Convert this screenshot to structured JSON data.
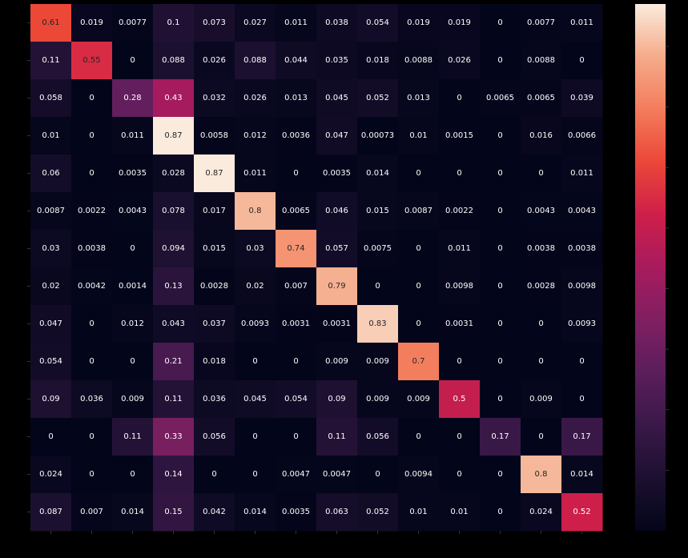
{
  "chart_data": {
    "type": "heatmap",
    "title": "",
    "xlabel": "",
    "ylabel": "",
    "x_tick_labels": [],
    "y_tick_labels": [],
    "colormap": "rocket",
    "vmin": 0,
    "vmax": 0.87,
    "colorbar": true,
    "values": [
      [
        "0.61",
        "0.019",
        "0.0077",
        "0.1",
        "0.073",
        "0.027",
        "0.011",
        "0.038",
        "0.054",
        "0.019",
        "0.019",
        "0",
        "0.0077",
        "0.011"
      ],
      [
        "0.11",
        "0.55",
        "0",
        "0.088",
        "0.026",
        "0.088",
        "0.044",
        "0.035",
        "0.018",
        "0.0088",
        "0.026",
        "0",
        "0.0088",
        "0"
      ],
      [
        "0.058",
        "0",
        "0.28",
        "0.43",
        "0.032",
        "0.026",
        "0.013",
        "0.045",
        "0.052",
        "0.013",
        "0",
        "0.0065",
        "0.0065",
        "0.039"
      ],
      [
        "0.01",
        "0",
        "0.011",
        "0.87",
        "0.0058",
        "0.012",
        "0.0036",
        "0.047",
        "0.00073",
        "0.01",
        "0.0015",
        "0",
        "0.016",
        "0.0066"
      ],
      [
        "0.06",
        "0",
        "0.0035",
        "0.028",
        "0.87",
        "0.011",
        "0",
        "0.0035",
        "0.014",
        "0",
        "0",
        "0",
        "0",
        "0.011"
      ],
      [
        "0.0087",
        "0.0022",
        "0.0043",
        "0.078",
        "0.017",
        "0.8",
        "0.0065",
        "0.046",
        "0.015",
        "0.0087",
        "0.0022",
        "0",
        "0.0043",
        "0.0043"
      ],
      [
        "0.03",
        "0.0038",
        "0",
        "0.094",
        "0.015",
        "0.03",
        "0.74",
        "0.057",
        "0.0075",
        "0",
        "0.011",
        "0",
        "0.0038",
        "0.0038"
      ],
      [
        "0.02",
        "0.0042",
        "0.0014",
        "0.13",
        "0.0028",
        "0.02",
        "0.007",
        "0.79",
        "0",
        "0",
        "0.0098",
        "0",
        "0.0028",
        "0.0098"
      ],
      [
        "0.047",
        "0",
        "0.012",
        "0.043",
        "0.037",
        "0.0093",
        "0.0031",
        "0.0031",
        "0.83",
        "0",
        "0.0031",
        "0",
        "0",
        "0.0093"
      ],
      [
        "0.054",
        "0",
        "0",
        "0.21",
        "0.018",
        "0",
        "0",
        "0.009",
        "0.009",
        "0.7",
        "0",
        "0",
        "0",
        "0"
      ],
      [
        "0.09",
        "0.036",
        "0.009",
        "0.11",
        "0.036",
        "0.045",
        "0.054",
        "0.09",
        "0.009",
        "0.009",
        "0.5",
        "0",
        "0.009",
        "0"
      ],
      [
        "0",
        "0",
        "0.11",
        "0.33",
        "0.056",
        "0",
        "0",
        "0.11",
        "0.056",
        "0",
        "0",
        "0.17",
        "0",
        "0.17"
      ],
      [
        "0.024",
        "0",
        "0",
        "0.14",
        "0",
        "0",
        "0.0047",
        "0.0047",
        "0",
        "0.0094",
        "0",
        "0",
        "0.8",
        "0.014"
      ],
      [
        "0.087",
        "0.007",
        "0.014",
        "0.15",
        "0.042",
        "0.014",
        "0.0035",
        "0.063",
        "0.052",
        "0.01",
        "0.01",
        "0",
        "0.024",
        "0.52"
      ]
    ]
  }
}
